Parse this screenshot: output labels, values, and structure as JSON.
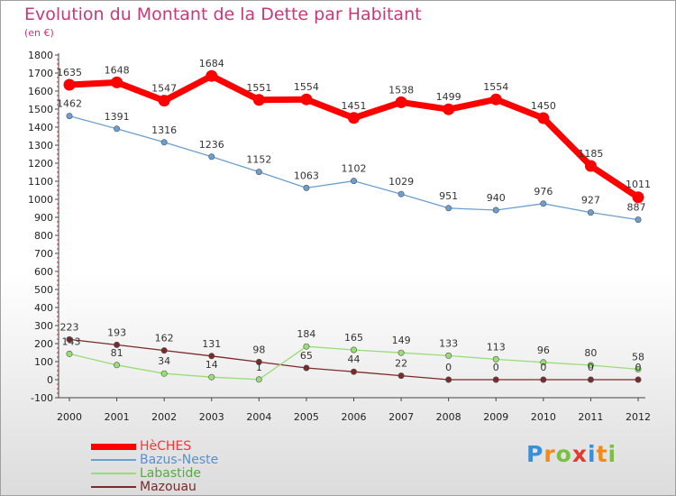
{
  "chart_data": {
    "type": "line",
    "title": "Evolution du Montant de la Dette par Habitant",
    "subtitle": "(en €)",
    "xlabel": "",
    "ylabel": "",
    "categories": [
      "2000",
      "2001",
      "2002",
      "2003",
      "2004",
      "2005",
      "2006",
      "2007",
      "2008",
      "2009",
      "2010",
      "2011",
      "2012"
    ],
    "ylim": [
      -100,
      1800
    ],
    "yticks": [
      -100,
      0,
      100,
      200,
      300,
      400,
      500,
      600,
      700,
      800,
      900,
      1000,
      1100,
      1200,
      1300,
      1400,
      1500,
      1600,
      1700,
      1800
    ],
    "grid": false,
    "legend_position": "bottom-left",
    "series": [
      {
        "name": "HèCHES",
        "color": "#ff0000",
        "values": [
          1635,
          1648,
          1547,
          1684,
          1551,
          1554,
          1451,
          1538,
          1499,
          1554,
          1450,
          1185,
          1011
        ]
      },
      {
        "name": "Bazus-Neste",
        "color": "#6a9fd0",
        "values": [
          1462,
          1391,
          1316,
          1236,
          1152,
          1063,
          1102,
          1029,
          951,
          940,
          976,
          927,
          887
        ]
      },
      {
        "name": "Labastide",
        "color": "#99dd77",
        "values": [
          143,
          81,
          34,
          14,
          1,
          184,
          165,
          149,
          133,
          113,
          96,
          80,
          58
        ]
      },
      {
        "name": "Mazouau",
        "color": "#7a2a2a",
        "values": [
          223,
          193,
          162,
          131,
          98,
          65,
          44,
          22,
          0,
          0,
          0,
          0,
          0
        ]
      }
    ]
  },
  "brand": {
    "letters": [
      "P",
      "r",
      "o",
      "x",
      "i",
      "t",
      "i"
    ],
    "colors": [
      "#3a8fd8",
      "#f08a1c",
      "#7ac043",
      "#e23a2e",
      "#3a8fd8",
      "#f08a1c",
      "#7ac043"
    ]
  }
}
